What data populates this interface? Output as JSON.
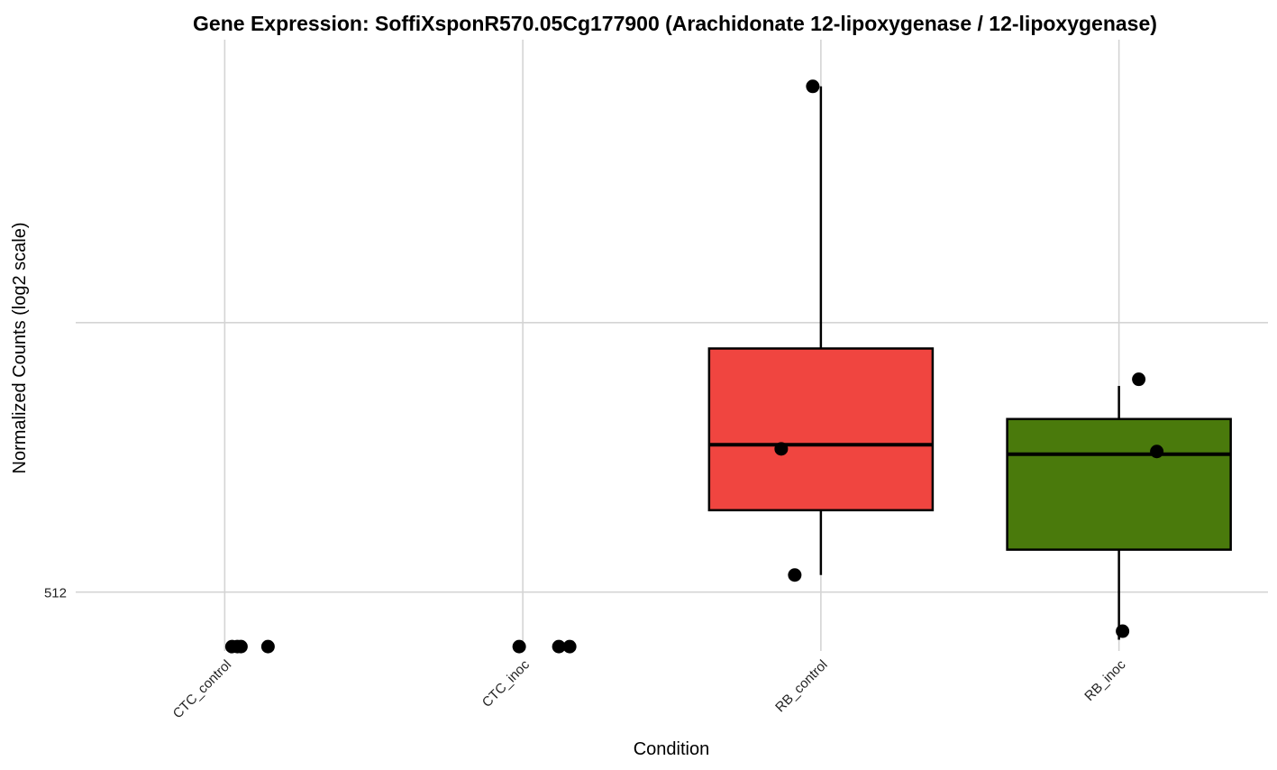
{
  "chart_data": {
    "type": "box",
    "title": "Gene Expression: SoffiXsponR570.05Cg177900 (Arachidonate 12-lipoxygenase / 12-lipoxygenase)",
    "xlabel": "Condition",
    "ylabel": "Normalized Counts (log2 scale)",
    "y_scale": "log2",
    "ylim": [
      440,
      2120
    ],
    "y_ticks": [
      512,
      1024
    ],
    "y_tick_labels": [
      "512",
      ""
    ],
    "grid": true,
    "categories": [
      "CTC_control",
      "CTC_inoc",
      "RB_control",
      "RB_inoc"
    ],
    "boxes": [
      {
        "category": "CTC_control",
        "min": null,
        "q1": null,
        "median": null,
        "q3": null,
        "max": null,
        "color": null
      },
      {
        "category": "CTC_inoc",
        "min": null,
        "q1": null,
        "median": null,
        "q3": null,
        "max": null,
        "color": null
      },
      {
        "category": "RB_control",
        "min": 535,
        "q1": 632,
        "median": 748,
        "q3": 958,
        "max": 1880,
        "color": "#f04540"
      },
      {
        "category": "RB_inoc",
        "min": 453,
        "q1": 571,
        "median": 730,
        "q3": 799,
        "max": 870,
        "color": "#4a7a0c"
      }
    ],
    "points": [
      {
        "category": "CTC_control",
        "y": 445
      },
      {
        "category": "CTC_control",
        "y": 445
      },
      {
        "category": "CTC_control",
        "y": 445
      },
      {
        "category": "CTC_control",
        "y": 445
      },
      {
        "category": "CTC_inoc",
        "y": 445
      },
      {
        "category": "CTC_inoc",
        "y": 445
      },
      {
        "category": "CTC_inoc",
        "y": 445
      },
      {
        "category": "RB_control",
        "y": 1880
      },
      {
        "category": "RB_control",
        "y": 740
      },
      {
        "category": "RB_control",
        "y": 535
      },
      {
        "category": "RB_inoc",
        "y": 885
      },
      {
        "category": "RB_inoc",
        "y": 735
      },
      {
        "category": "RB_inoc",
        "y": 463
      }
    ]
  }
}
